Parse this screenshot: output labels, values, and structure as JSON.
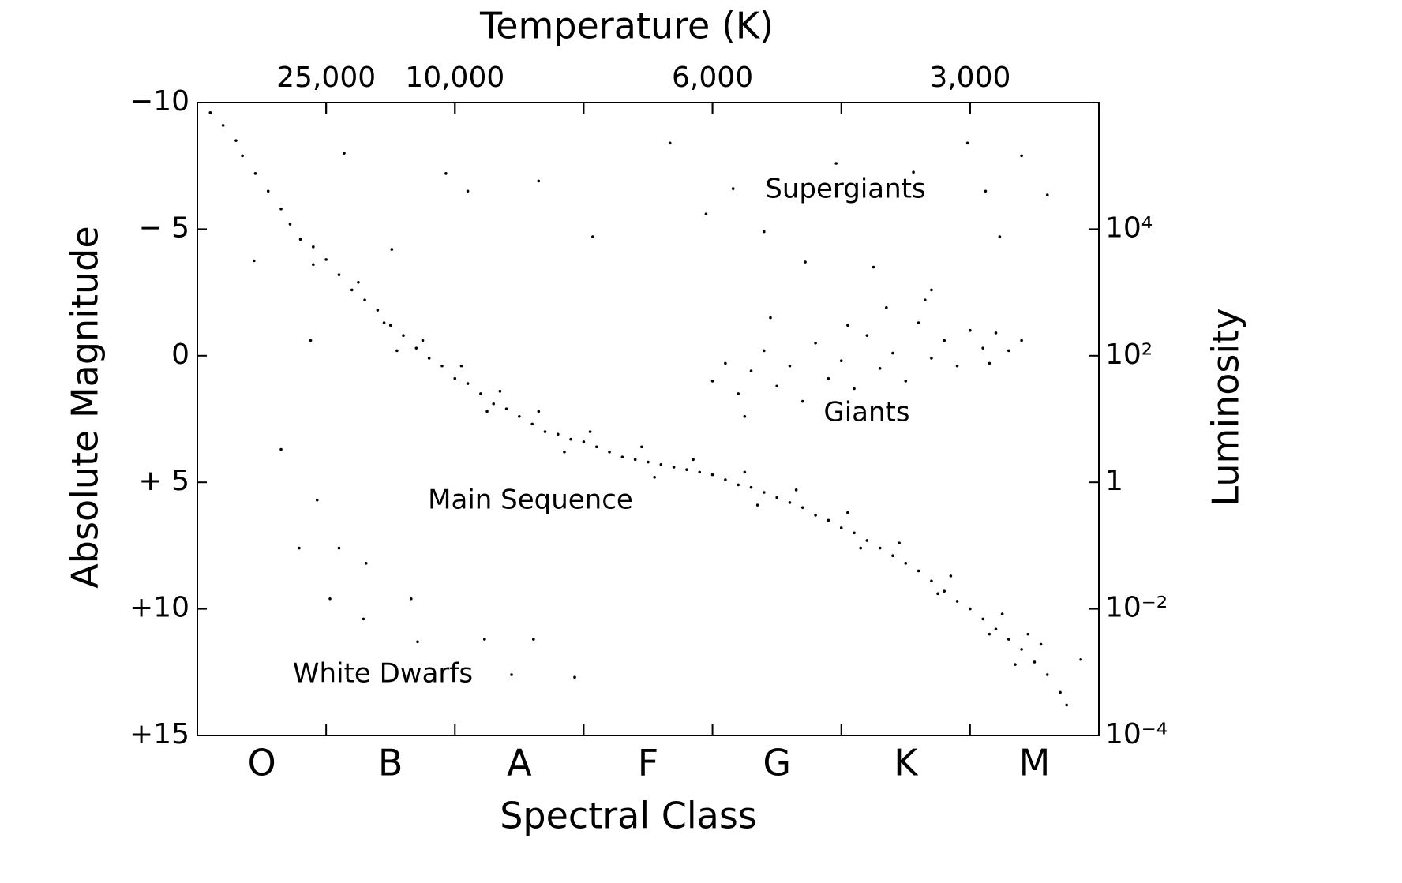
{
  "chart_data": {
    "type": "scatter",
    "title": "Temperature (K)",
    "x_label": "Spectral Class",
    "y_label": "Absolute Magnitude",
    "y2_label": "Luminosity",
    "categories": [
      "O",
      "B",
      "A",
      "F",
      "G",
      "K",
      "M"
    ],
    "xlim": [
      0,
      7
    ],
    "x2ticks": [
      {
        "value": 1,
        "label": "25,000"
      },
      {
        "value": 2,
        "label": "10,000"
      },
      {
        "value": 4,
        "label": "6,000"
      },
      {
        "value": 6,
        "label": "3,000"
      }
    ],
    "ylim": [
      15,
      -10
    ],
    "yticks": [
      {
        "value": -10,
        "label": "−10"
      },
      {
        "value": -5,
        "label": "− 5"
      },
      0,
      {
        "value": 5,
        "label": "+ 5"
      },
      {
        "value": 10,
        "label": "+10"
      },
      {
        "value": 15,
        "label": "+15"
      }
    ],
    "y2lim": [
      0.0001,
      1000000
    ],
    "y2_log": true,
    "y2ticks": [
      {
        "value": 10000,
        "label": "10⁴"
      },
      {
        "value": 100,
        "label": "10²"
      },
      1,
      {
        "value": 0.01,
        "label": "10⁻²"
      },
      {
        "value": 0.0001,
        "label": "10⁻⁴"
      }
    ],
    "color": "#000000",
    "annotations": [
      "Supergiants",
      "Giants",
      "Main Sequence",
      "White Dwarfs"
    ],
    "x": [
      0.1,
      0.2,
      0.3,
      0.35,
      0.45,
      0.55,
      0.65,
      0.72,
      0.8,
      0.9,
      1.0,
      1.1,
      1.2,
      1.3,
      1.4,
      1.5,
      1.6,
      1.7,
      1.8,
      1.9,
      2.0,
      2.1,
      2.2,
      2.3,
      2.4,
      2.5,
      2.6,
      2.7,
      2.8,
      2.9,
      3.0,
      3.1,
      3.2,
      3.3,
      3.4,
      3.5,
      3.6,
      3.7,
      3.8,
      3.9,
      4.0,
      4.1,
      4.2,
      4.3,
      4.4,
      4.5,
      4.6,
      4.7,
      4.8,
      4.9,
      5.0,
      5.1,
      5.2,
      5.3,
      5.4,
      5.5,
      5.6,
      5.7,
      5.8,
      5.9,
      6.0,
      6.1,
      6.2,
      6.3,
      6.4,
      6.5,
      6.6,
      6.7,
      6.75,
      0.9,
      1.25,
      1.45,
      1.75,
      2.05,
      2.35,
      2.65,
      3.05,
      3.45,
      3.85,
      4.25,
      4.65,
      5.05,
      5.45,
      5.85,
      6.25,
      6.45,
      6.55,
      1.55,
      2.25,
      2.85,
      3.55,
      4.35,
      5.15,
      5.75,
      6.15,
      6.35,
      4.0,
      4.1,
      4.2,
      4.3,
      4.4,
      4.5,
      4.6,
      4.7,
      4.8,
      4.9,
      5.0,
      5.1,
      5.2,
      5.3,
      5.4,
      5.5,
      5.6,
      5.7,
      5.8,
      5.9,
      6.0,
      6.1,
      6.2,
      6.3,
      6.4,
      5.35,
      4.45,
      5.05,
      5.65,
      4.25,
      6.15,
      3.67,
      4.16,
      4.72,
      4.96,
      5.25,
      5.56,
      5.98,
      6.12,
      6.4,
      6.6,
      6.23,
      3.95,
      4.4,
      5.7,
      2.65,
      1.93,
      1.14,
      2.1,
      3.07,
      1.51,
      0.79,
      1.1,
      1.31,
      1.03,
      1.29,
      1.66,
      1.71,
      2.23,
      2.61,
      2.44,
      2.93,
      0.93,
      0.44,
      0.65,
      0.88,
      6.86
    ],
    "values": [
      -9.6,
      -9.1,
      -8.5,
      -7.9,
      -7.2,
      -6.5,
      -5.8,
      -5.2,
      -4.6,
      -4.3,
      -3.8,
      -3.2,
      -2.6,
      -2.2,
      -1.8,
      -1.2,
      -0.8,
      -0.3,
      0.1,
      0.4,
      0.9,
      1.1,
      1.5,
      1.9,
      2.1,
      2.4,
      2.7,
      3.0,
      3.1,
      3.3,
      3.4,
      3.6,
      3.8,
      4.0,
      4.1,
      4.2,
      4.3,
      4.4,
      4.5,
      4.6,
      4.7,
      4.9,
      5.1,
      5.2,
      5.4,
      5.6,
      5.8,
      6.0,
      6.3,
      6.5,
      6.8,
      7.0,
      7.3,
      7.6,
      7.9,
      8.2,
      8.5,
      8.9,
      9.3,
      9.7,
      10.0,
      10.4,
      10.8,
      11.2,
      11.6,
      12.1,
      12.6,
      13.3,
      13.8,
      -3.6,
      -2.9,
      -1.3,
      -0.6,
      0.4,
      1.4,
      2.2,
      3.0,
      3.6,
      4.1,
      4.6,
      5.3,
      6.2,
      7.4,
      8.7,
      10.2,
      11.0,
      11.4,
      -0.2,
      2.2,
      3.8,
      4.8,
      5.9,
      7.6,
      9.4,
      11.0,
      12.2,
      1.0,
      0.3,
      1.5,
      0.6,
      -0.2,
      1.2,
      0.4,
      1.8,
      -0.5,
      0.9,
      0.2,
      1.3,
      -0.8,
      0.5,
      -0.1,
      1.0,
      -1.3,
      0.1,
      -0.6,
      0.4,
      -1.0,
      -0.3,
      -0.9,
      -0.2,
      -0.6,
      -1.9,
      -1.5,
      -1.2,
      -2.2,
      2.4,
      0.3,
      -8.4,
      -6.6,
      -3.7,
      -7.6,
      -3.5,
      -7.25,
      -8.4,
      -6.5,
      -7.9,
      -6.35,
      -4.7,
      -5.6,
      -4.9,
      -2.6,
      -6.9,
      -7.2,
      -8.0,
      -6.5,
      -4.7,
      -4.2,
      7.6,
      7.6,
      8.2,
      9.6,
      10.4,
      9.6,
      11.3,
      11.2,
      11.2,
      12.6,
      12.7,
      5.7,
      -3.75,
      3.7,
      -0.6,
      12.0
    ]
  }
}
